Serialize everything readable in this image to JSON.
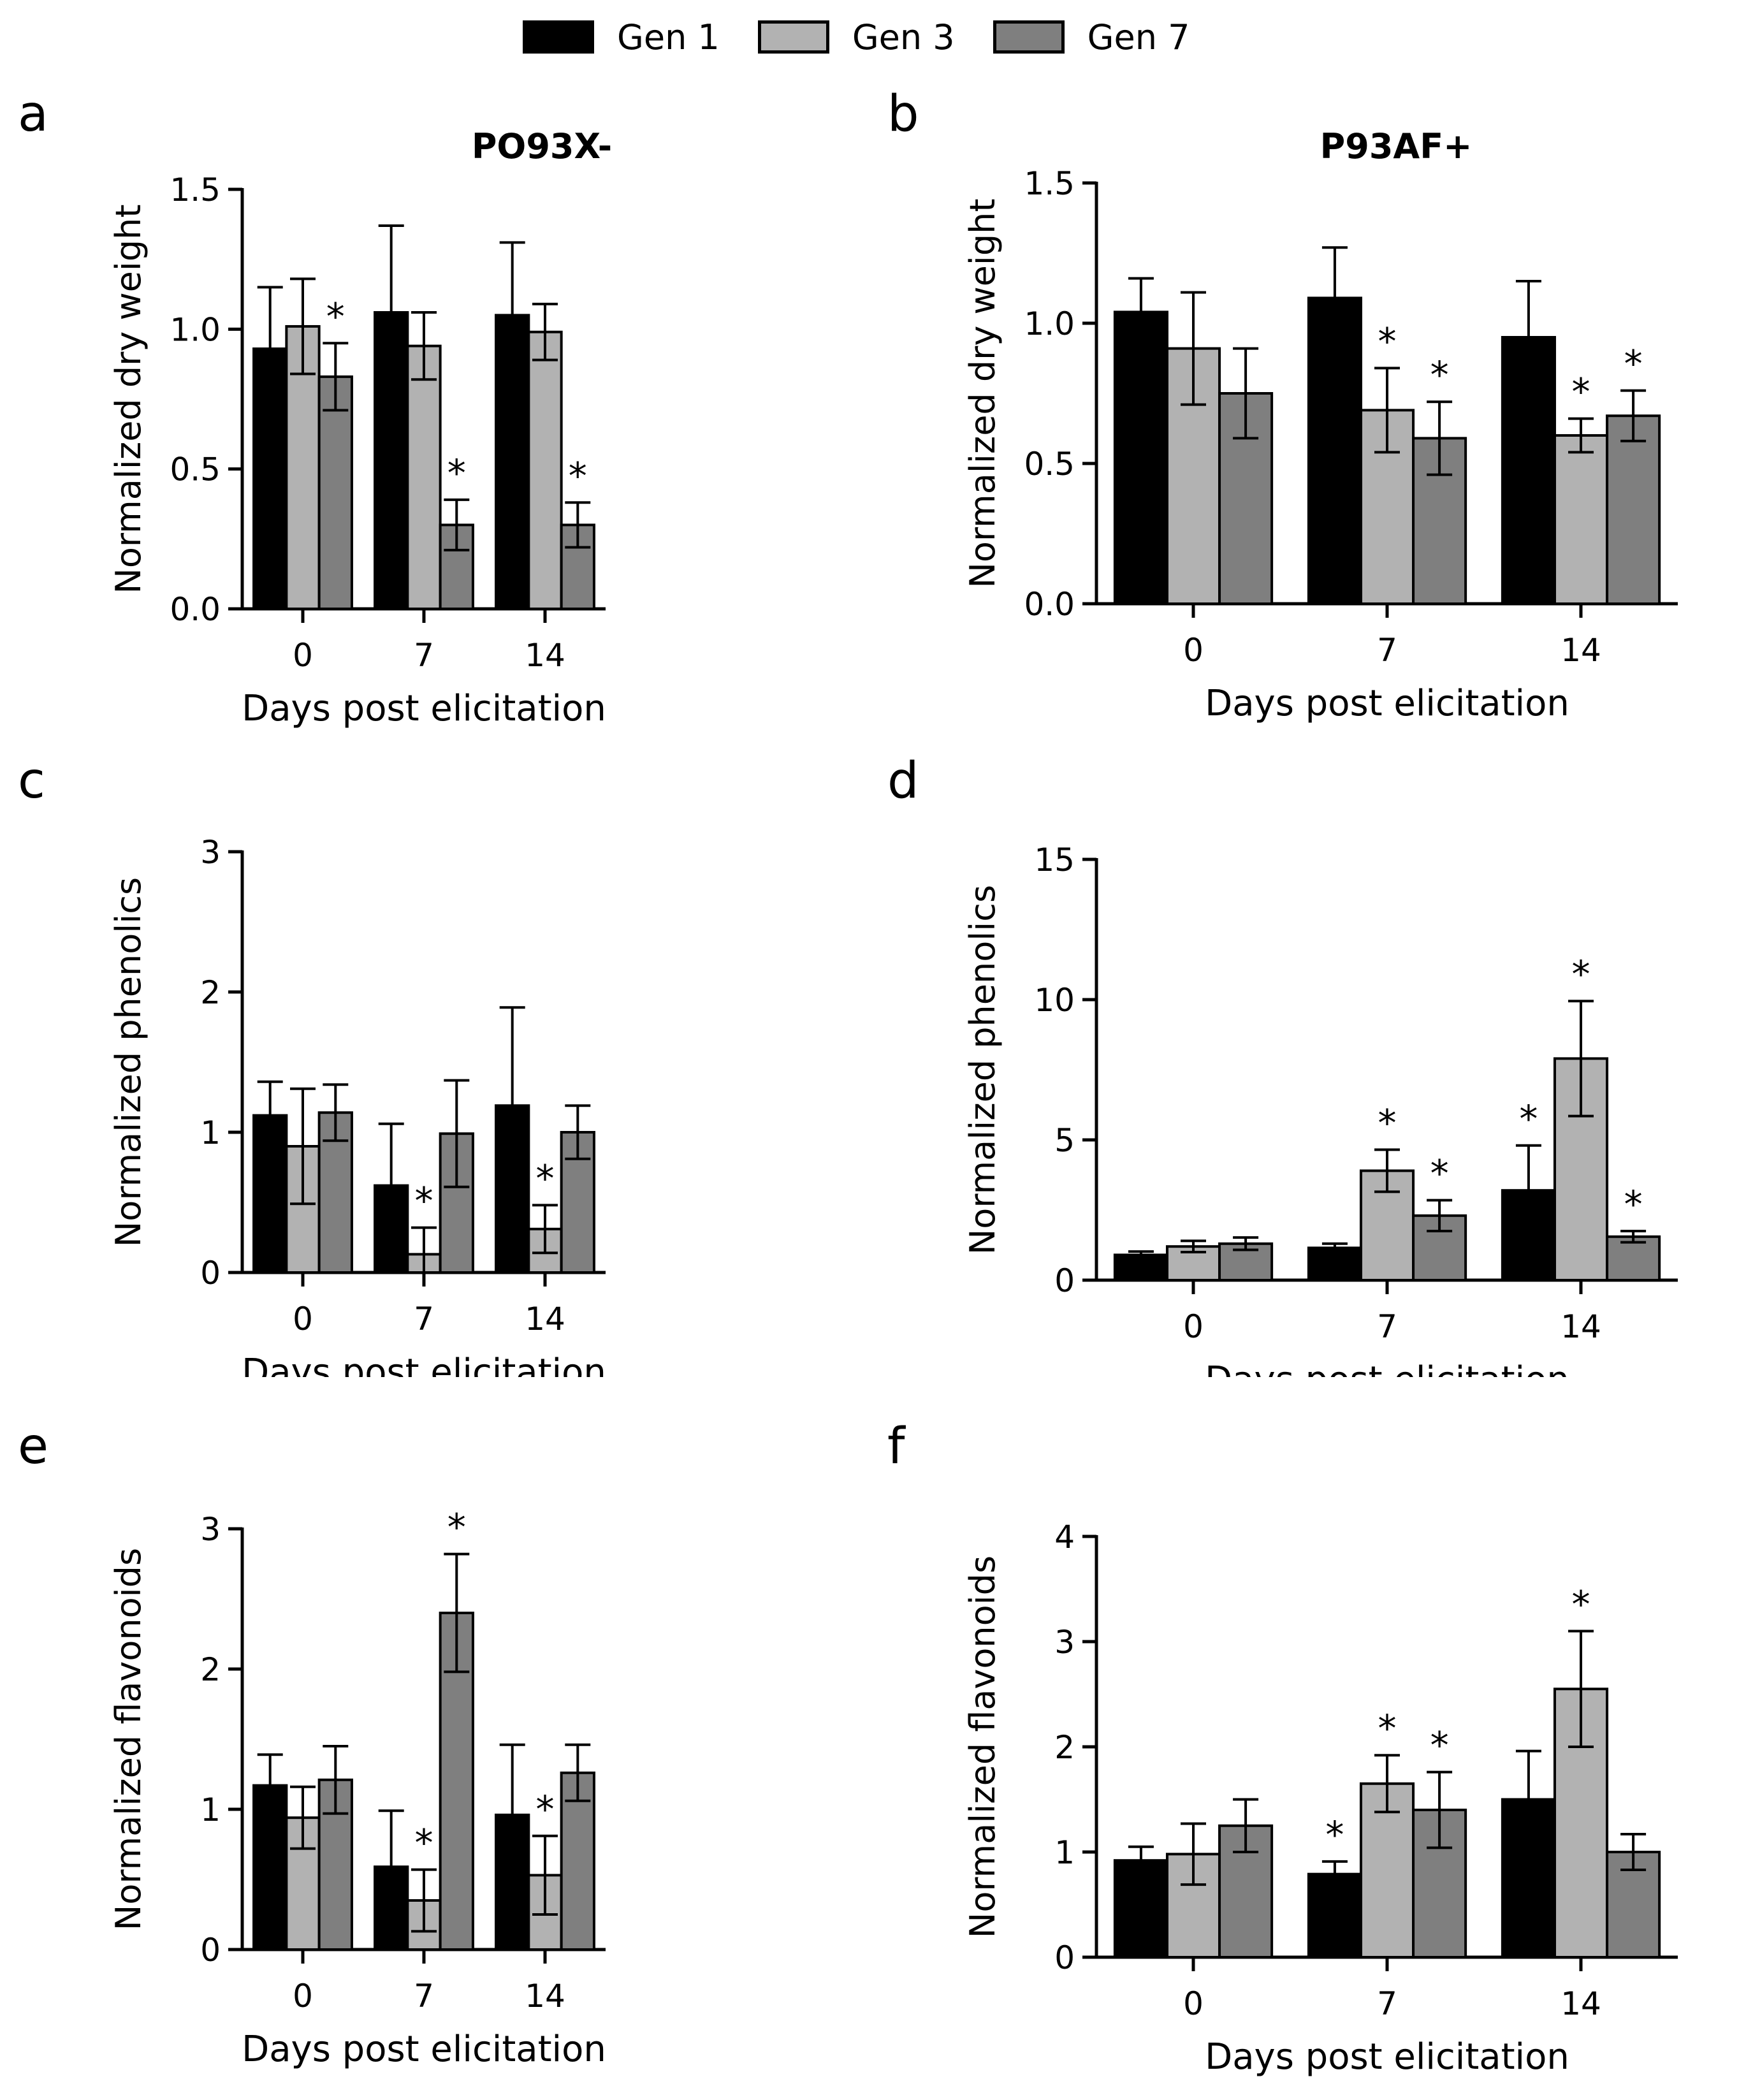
{
  "legend": {
    "items": [
      {
        "label": "Gen 1",
        "color": "#000000"
      },
      {
        "label": "Gen 3",
        "color": "#b2b2b2"
      },
      {
        "label": "Gen 7",
        "color": "#7f7f7f"
      }
    ]
  },
  "chart_data": [
    {
      "panel": "a",
      "type": "bar",
      "title": "PO93X-",
      "xlabel": "Days post elicitation",
      "ylabel": "Normalized dry weight",
      "categories": [
        "0",
        "7",
        "14"
      ],
      "ylim": [
        0,
        1.5
      ],
      "yticks": [
        "0.0",
        "0.5",
        "1.0",
        "1.5"
      ],
      "series": [
        {
          "name": "Gen 1",
          "values": [
            0.93,
            1.06,
            1.05
          ],
          "errors": [
            0.22,
            0.31,
            0.26
          ],
          "sig": [
            false,
            false,
            false
          ]
        },
        {
          "name": "Gen 3",
          "values": [
            1.01,
            0.94,
            0.99
          ],
          "errors": [
            0.17,
            0.12,
            0.1
          ],
          "sig": [
            false,
            false,
            false
          ]
        },
        {
          "name": "Gen 7",
          "values": [
            0.83,
            0.3,
            0.3
          ],
          "errors": [
            0.12,
            0.09,
            0.08
          ],
          "sig": [
            true,
            true,
            true
          ]
        }
      ]
    },
    {
      "panel": "b",
      "type": "bar",
      "title": "P93AF+",
      "xlabel": "Days post elicitation",
      "ylabel": "Normalized dry weight",
      "categories": [
        "0",
        "7",
        "14"
      ],
      "ylim": [
        0,
        1.5
      ],
      "yticks": [
        "0.0",
        "0.5",
        "1.0",
        "1.5"
      ],
      "series": [
        {
          "name": "Gen 1",
          "values": [
            1.04,
            1.09,
            0.95
          ],
          "errors": [
            0.12,
            0.18,
            0.2
          ],
          "sig": [
            false,
            false,
            false
          ]
        },
        {
          "name": "Gen 3",
          "values": [
            0.91,
            0.69,
            0.6
          ],
          "errors": [
            0.2,
            0.15,
            0.06
          ],
          "sig": [
            false,
            true,
            true
          ]
        },
        {
          "name": "Gen 7",
          "values": [
            0.75,
            0.59,
            0.67
          ],
          "errors": [
            0.16,
            0.13,
            0.09
          ],
          "sig": [
            false,
            true,
            true
          ]
        }
      ]
    },
    {
      "panel": "c",
      "type": "bar",
      "title": "",
      "xlabel": "Days post elicitation",
      "ylabel": "Normalized phenolics",
      "categories": [
        "0",
        "7",
        "14"
      ],
      "ylim": [
        0,
        3
      ],
      "yticks": [
        "0",
        "1",
        "2",
        "3"
      ],
      "series": [
        {
          "name": "Gen 1",
          "values": [
            1.12,
            0.62,
            1.19
          ],
          "errors": [
            0.24,
            0.44,
            0.7
          ],
          "sig": [
            false,
            false,
            false
          ]
        },
        {
          "name": "Gen 3",
          "values": [
            0.9,
            0.13,
            0.31
          ],
          "errors": [
            0.41,
            0.19,
            0.17
          ],
          "sig": [
            false,
            true,
            true
          ]
        },
        {
          "name": "Gen 7",
          "values": [
            1.14,
            0.99,
            1.0
          ],
          "errors": [
            0.2,
            0.38,
            0.19
          ],
          "sig": [
            false,
            false,
            false
          ]
        }
      ]
    },
    {
      "panel": "d",
      "type": "bar",
      "title": "",
      "xlabel": "Days post elicitation",
      "ylabel": "Normalized phenolics",
      "categories": [
        "0",
        "7",
        "14"
      ],
      "ylim": [
        0,
        15
      ],
      "yticks": [
        "0",
        "5",
        "10",
        "15"
      ],
      "series": [
        {
          "name": "Gen 1",
          "values": [
            0.9,
            1.15,
            3.2
          ],
          "errors": [
            0.12,
            0.15,
            1.6
          ],
          "sig": [
            false,
            false,
            true
          ]
        },
        {
          "name": "Gen 3",
          "values": [
            1.2,
            3.9,
            7.9
          ],
          "errors": [
            0.2,
            0.75,
            2.05
          ],
          "sig": [
            false,
            true,
            true
          ]
        },
        {
          "name": "Gen 7",
          "values": [
            1.3,
            2.3,
            1.55
          ],
          "errors": [
            0.22,
            0.55,
            0.2
          ],
          "sig": [
            false,
            true,
            true
          ]
        }
      ]
    },
    {
      "panel": "e",
      "type": "bar",
      "title": "",
      "xlabel": "Days post elicitation",
      "ylabel": "Normalized flavonoids",
      "categories": [
        "0",
        "7",
        "14"
      ],
      "ylim": [
        0,
        3
      ],
      "yticks": [
        "0",
        "1",
        "2",
        "3"
      ],
      "series": [
        {
          "name": "Gen 1",
          "values": [
            1.17,
            0.59,
            0.96
          ],
          "errors": [
            0.22,
            0.4,
            0.5
          ],
          "sig": [
            false,
            false,
            false
          ]
        },
        {
          "name": "Gen 3",
          "values": [
            0.94,
            0.35,
            0.53
          ],
          "errors": [
            0.22,
            0.22,
            0.28
          ],
          "sig": [
            false,
            true,
            true
          ]
        },
        {
          "name": "Gen 7",
          "values": [
            1.21,
            2.4,
            1.26
          ],
          "errors": [
            0.24,
            0.42,
            0.2
          ],
          "sig": [
            false,
            true,
            false
          ]
        }
      ]
    },
    {
      "panel": "f",
      "type": "bar",
      "title": "",
      "xlabel": "Days post elicitation",
      "ylabel": "Normalized flavonoids",
      "categories": [
        "0",
        "7",
        "14"
      ],
      "ylim": [
        0,
        4
      ],
      "yticks": [
        "0",
        "1",
        "2",
        "3",
        "4"
      ],
      "series": [
        {
          "name": "Gen 1",
          "values": [
            0.92,
            0.79,
            1.5
          ],
          "errors": [
            0.13,
            0.12,
            0.46
          ],
          "sig": [
            false,
            true,
            false
          ]
        },
        {
          "name": "Gen 3",
          "values": [
            0.98,
            1.65,
            2.55
          ],
          "errors": [
            0.29,
            0.27,
            0.55
          ],
          "sig": [
            false,
            true,
            true
          ]
        },
        {
          "name": "Gen 7",
          "values": [
            1.25,
            1.4,
            1.0
          ],
          "errors": [
            0.25,
            0.36,
            0.17
          ],
          "sig": [
            false,
            true,
            false
          ]
        }
      ]
    }
  ]
}
